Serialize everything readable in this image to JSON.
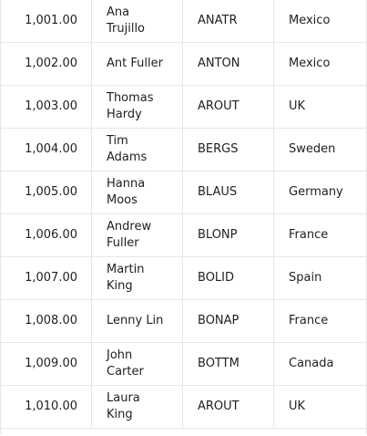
{
  "rows": [
    {
      "id": "1,001.00",
      "name": "Ana Trujillo",
      "code": "ANATR",
      "country": "Mexico"
    },
    {
      "id": "1,002.00",
      "name": "Ant Fuller",
      "code": "ANTON",
      "country": "Mexico"
    },
    {
      "id": "1,003.00",
      "name": "Thomas Hardy",
      "code": "AROUT",
      "country": "UK"
    },
    {
      "id": "1,004.00",
      "name": "Tim Adams",
      "code": "BERGS",
      "country": "Sweden"
    },
    {
      "id": "1,005.00",
      "name": "Hanna Moos",
      "code": "BLAUS",
      "country": "Germany"
    },
    {
      "id": "1,006.00",
      "name": "Andrew Fuller",
      "code": "BLONP",
      "country": "France"
    },
    {
      "id": "1,007.00",
      "name": "Martin King",
      "code": "BOLID",
      "country": "Spain"
    },
    {
      "id": "1,008.00",
      "name": "Lenny Lin",
      "code": "BONAP",
      "country": "France"
    },
    {
      "id": "1,009.00",
      "name": "John Carter",
      "code": "BOTTM",
      "country": "Canada"
    },
    {
      "id": "1,010.00",
      "name": "Laura King",
      "code": "AROUT",
      "country": "UK"
    }
  ]
}
